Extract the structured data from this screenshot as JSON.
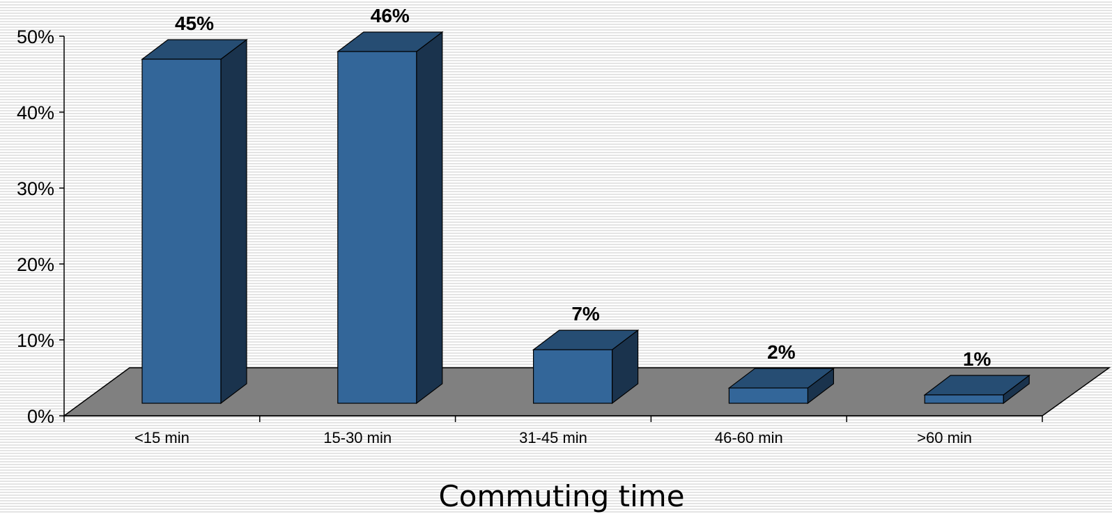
{
  "chart_data": {
    "type": "bar",
    "style": "3d-column",
    "categories": [
      "<15 min",
      "15-30 min",
      "31-45 min",
      "46-60 min",
      ">60 min"
    ],
    "values": [
      45,
      46,
      7,
      2,
      1
    ],
    "data_labels": [
      "45%",
      "46%",
      "7%",
      "2%",
      "1%"
    ],
    "y_ticks": [
      "0%",
      "10%",
      "20%",
      "30%",
      "40%",
      "50%"
    ],
    "xlabel": "Commuting time",
    "ylabel": "",
    "ylim": [
      0,
      50
    ],
    "grid": false,
    "legend": "none",
    "colors": {
      "bar_front": "#336699",
      "bar_top": "#264D73",
      "bar_side": "#1A334D",
      "floor": "#808080"
    }
  }
}
